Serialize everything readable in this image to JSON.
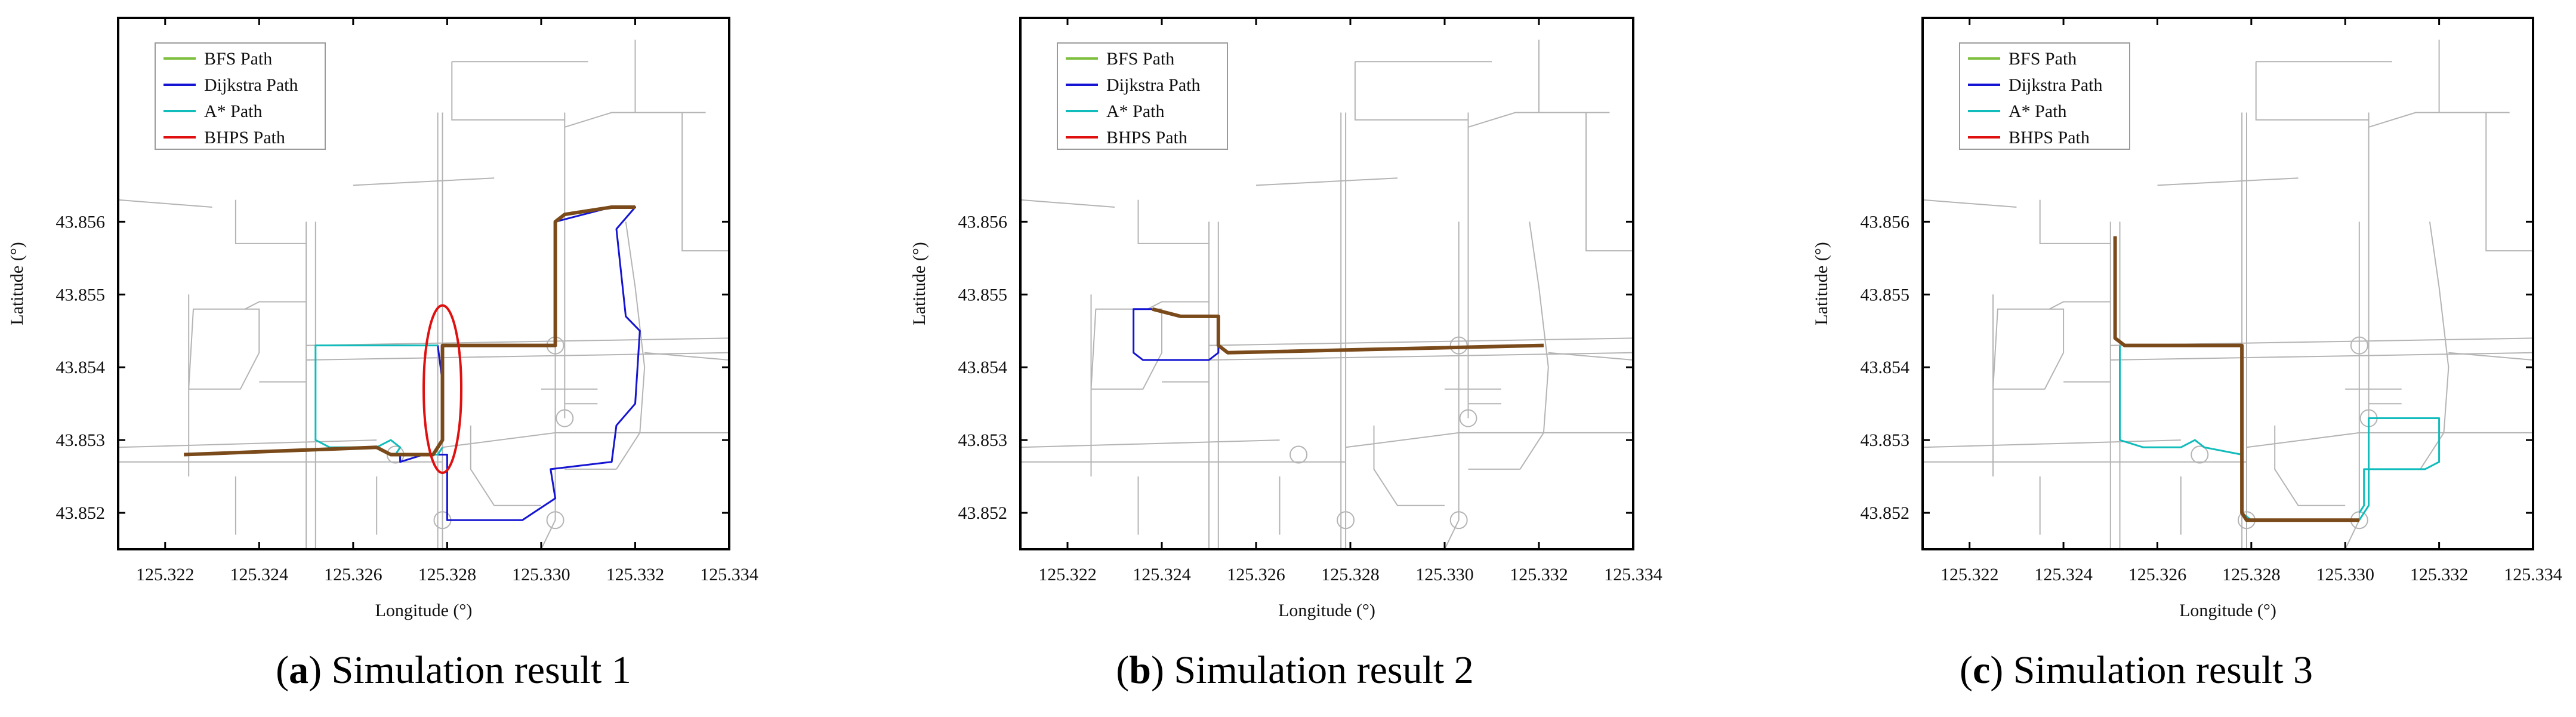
{
  "figure": {
    "legend_entries": [
      {
        "label": "BFS Path",
        "color": "#7fbf3f"
      },
      {
        "label": "Dijkstra Path",
        "color": "#1414d2"
      },
      {
        "label": "A* Path",
        "color": "#10bcbc"
      },
      {
        "label": "BHPS Path",
        "color": "#e01010"
      }
    ],
    "overlap_color": "#7a4a1a",
    "road_color": "#b4b4b4"
  },
  "chart_data": [
    {
      "type": "line",
      "panel_letter": "a",
      "panel_title": " Simulation result 1",
      "xlabel": "Longitude (°)",
      "ylabel": "Latitude (°)",
      "xlim": [
        125.321,
        125.334
      ],
      "ylim": [
        43.8515,
        43.8588
      ],
      "xticks": [
        "125.322",
        "125.324",
        "125.326",
        "125.328",
        "125.330",
        "125.332",
        "125.334"
      ],
      "yticks": [
        "43.852",
        "43.853",
        "43.854",
        "43.855",
        "43.856"
      ],
      "annotation": {
        "type": "ellipse",
        "center": [
          125.3279,
          43.8537
        ],
        "rx_deg": 0.0004,
        "ry_deg": 0.00115,
        "color": "#e01010"
      },
      "series": [
        {
          "name": "Dijkstra Path",
          "x": [
            125.3278,
            125.3279,
            125.3279,
            125.3303,
            125.3303,
            125.3315,
            125.332,
            125.3316,
            125.3318,
            125.3321,
            125.332,
            125.3316,
            125.3315,
            125.3302,
            125.3303,
            125.3296,
            125.328,
            125.328,
            125.3275,
            125.327,
            125.327
          ],
          "y": [
            43.8543,
            43.8538,
            43.8543,
            43.8543,
            43.856,
            43.8562,
            43.8562,
            43.8559,
            43.8547,
            43.8545,
            43.8535,
            43.8532,
            43.8527,
            43.8526,
            43.8522,
            43.8519,
            43.8519,
            43.8528,
            43.8528,
            43.8527,
            43.8528
          ]
        },
        {
          "name": "A* Path",
          "x": [
            125.3278,
            125.3252,
            125.3252,
            125.3255,
            125.3265,
            125.3268,
            125.327,
            125.3269,
            125.3278,
            125.3279
          ],
          "y": [
            43.8543,
            43.8543,
            43.853,
            43.8529,
            43.8529,
            43.853,
            43.8529,
            43.8528,
            43.8528,
            43.8529
          ]
        },
        {
          "name": "BFS Path",
          "x": [
            125.3224,
            125.3265,
            125.3268,
            125.327,
            125.3273,
            125.3277,
            125.3279,
            125.3279,
            125.3303,
            125.3303,
            125.3305,
            125.3315,
            125.332
          ],
          "y": [
            43.8528,
            43.8529,
            43.8528,
            43.8528,
            43.8528,
            43.8528,
            43.853,
            43.8543,
            43.8543,
            43.856,
            43.8561,
            43.8562,
            43.8562
          ]
        },
        {
          "name": "BHPS Path",
          "x": [
            125.3224,
            125.3265,
            125.3268,
            125.327,
            125.3273,
            125.3277,
            125.3279,
            125.3279,
            125.3303,
            125.3303,
            125.3305,
            125.3315,
            125.332
          ],
          "y": [
            43.8528,
            43.8529,
            43.8528,
            43.8528,
            43.8528,
            43.8528,
            43.853,
            43.8543,
            43.8543,
            43.856,
            43.8561,
            43.8562,
            43.8562
          ]
        }
      ]
    },
    {
      "type": "line",
      "panel_letter": "b",
      "panel_title": " Simulation result 2",
      "xlabel": "Longitude (°)",
      "ylabel": "Latitude (°)",
      "xlim": [
        125.321,
        125.334
      ],
      "ylim": [
        43.8515,
        43.8588
      ],
      "xticks": [
        "125.322",
        "125.324",
        "125.326",
        "125.328",
        "125.330",
        "125.332",
        "125.334"
      ],
      "yticks": [
        "43.852",
        "43.853",
        "43.854",
        "43.855",
        "43.856"
      ],
      "annotation": null,
      "series": [
        {
          "name": "Dijkstra Path",
          "x": [
            125.3238,
            125.3234,
            125.3234,
            125.3236,
            125.325,
            125.3252,
            125.3252
          ],
          "y": [
            43.8548,
            43.8548,
            43.8542,
            43.8541,
            43.8541,
            43.8542,
            43.8544
          ]
        },
        {
          "name": "A* Path",
          "x": [
            125.3252,
            125.3252,
            125.3254,
            125.3321
          ],
          "y": [
            43.8547,
            43.8543,
            43.8542,
            43.8543
          ]
        },
        {
          "name": "BFS Path",
          "x": [
            125.3238,
            125.3244,
            125.3252,
            125.3252,
            125.3254,
            125.3321
          ],
          "y": [
            43.8548,
            43.8547,
            43.8547,
            43.8543,
            43.8542,
            43.8543
          ]
        },
        {
          "name": "BHPS Path",
          "x": [
            125.3238,
            125.3244,
            125.3252,
            125.3252,
            125.3254,
            125.3321
          ],
          "y": [
            43.8548,
            43.8547,
            43.8547,
            43.8543,
            43.8542,
            43.8543
          ]
        }
      ]
    },
    {
      "type": "line",
      "panel_letter": "c",
      "panel_title": " Simulation result 3",
      "xlabel": "Longitude (°)",
      "ylabel": "Latitude (°)",
      "xlim": [
        125.321,
        125.334
      ],
      "ylim": [
        43.8515,
        43.8588
      ],
      "xticks": [
        "125.322",
        "125.324",
        "125.326",
        "125.328",
        "125.330",
        "125.332",
        "125.334"
      ],
      "yticks": [
        "43.852",
        "43.853",
        "43.854",
        "43.855",
        "43.856"
      ],
      "annotation": null,
      "series": [
        {
          "name": "A* Path",
          "x": [
            125.3252,
            125.3252,
            125.3257,
            125.3265,
            125.3268,
            125.327,
            125.3278,
            125.3278,
            125.328,
            125.3303,
            125.3305,
            125.3305,
            125.332,
            125.332,
            125.3317,
            125.3304,
            125.3304,
            125.3303
          ],
          "y": [
            43.8543,
            43.853,
            43.8529,
            43.8529,
            43.853,
            43.8529,
            43.8528,
            43.852,
            43.8519,
            43.8519,
            43.8521,
            43.8533,
            43.8533,
            43.8527,
            43.8526,
            43.8526,
            43.8521,
            43.852
          ]
        },
        {
          "name": "BFS Path",
          "x": [
            125.3251,
            125.3251,
            125.3253,
            125.3278,
            125.3278,
            125.3279,
            125.3303
          ],
          "y": [
            43.8558,
            43.8544,
            43.8543,
            43.8543,
            43.852,
            43.8519,
            43.8519
          ]
        },
        {
          "name": "BHPS Path",
          "x": [
            125.3251,
            125.3251,
            125.3253,
            125.3278,
            125.3278,
            125.3279,
            125.3303
          ],
          "y": [
            43.8558,
            43.8544,
            43.8543,
            43.8543,
            43.852,
            43.8519,
            43.8519
          ]
        }
      ]
    }
  ]
}
